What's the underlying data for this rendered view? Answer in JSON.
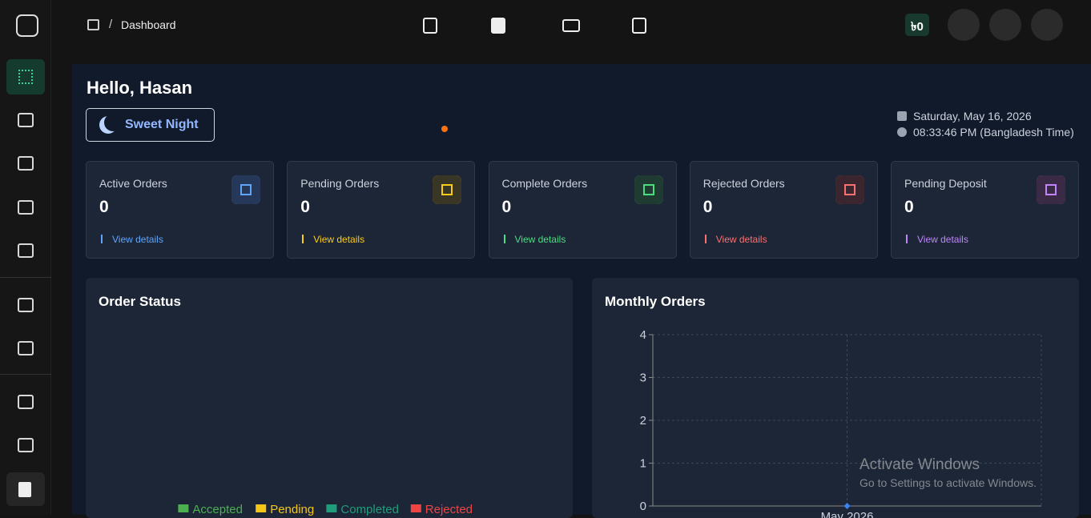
{
  "header": {
    "breadcrumb": "Dashboard",
    "balance": "৳0"
  },
  "greeting": {
    "title": "Hello, Hasan",
    "mode_button": "Sweet Night",
    "date": "Saturday, May 16, 2026",
    "time": "08:33:46 PM (Bangladesh Time)"
  },
  "stats": [
    {
      "label": "Active Orders",
      "value": "0",
      "link": "View details"
    },
    {
      "label": "Pending Orders",
      "value": "0",
      "link": "View details"
    },
    {
      "label": "Complete Orders",
      "value": "0",
      "link": "View details"
    },
    {
      "label": "Rejected Orders",
      "value": "0",
      "link": "View details"
    },
    {
      "label": "Pending Deposit",
      "value": "0",
      "link": "View details"
    }
  ],
  "chart_data": [
    {
      "type": "pie",
      "title": "Order Status",
      "categories": [
        "Accepted",
        "Pending",
        "Completed",
        "Rejected"
      ],
      "values": [
        0,
        0,
        0,
        0
      ],
      "colors": [
        "#4caf50",
        "#f5c518",
        "#1f9d7a",
        "#ef4444"
      ]
    },
    {
      "type": "line",
      "title": "Monthly Orders",
      "categories": [
        "May 2026"
      ],
      "series": [
        {
          "color": "#3b82f6",
          "values": [
            0
          ]
        }
      ],
      "ylim": [
        0,
        4
      ],
      "yticks": [
        0,
        1,
        2,
        3,
        4
      ],
      "grid": true
    }
  ],
  "watermark": {
    "title": "Activate Windows",
    "subtitle": "Go to Settings to activate Windows."
  }
}
